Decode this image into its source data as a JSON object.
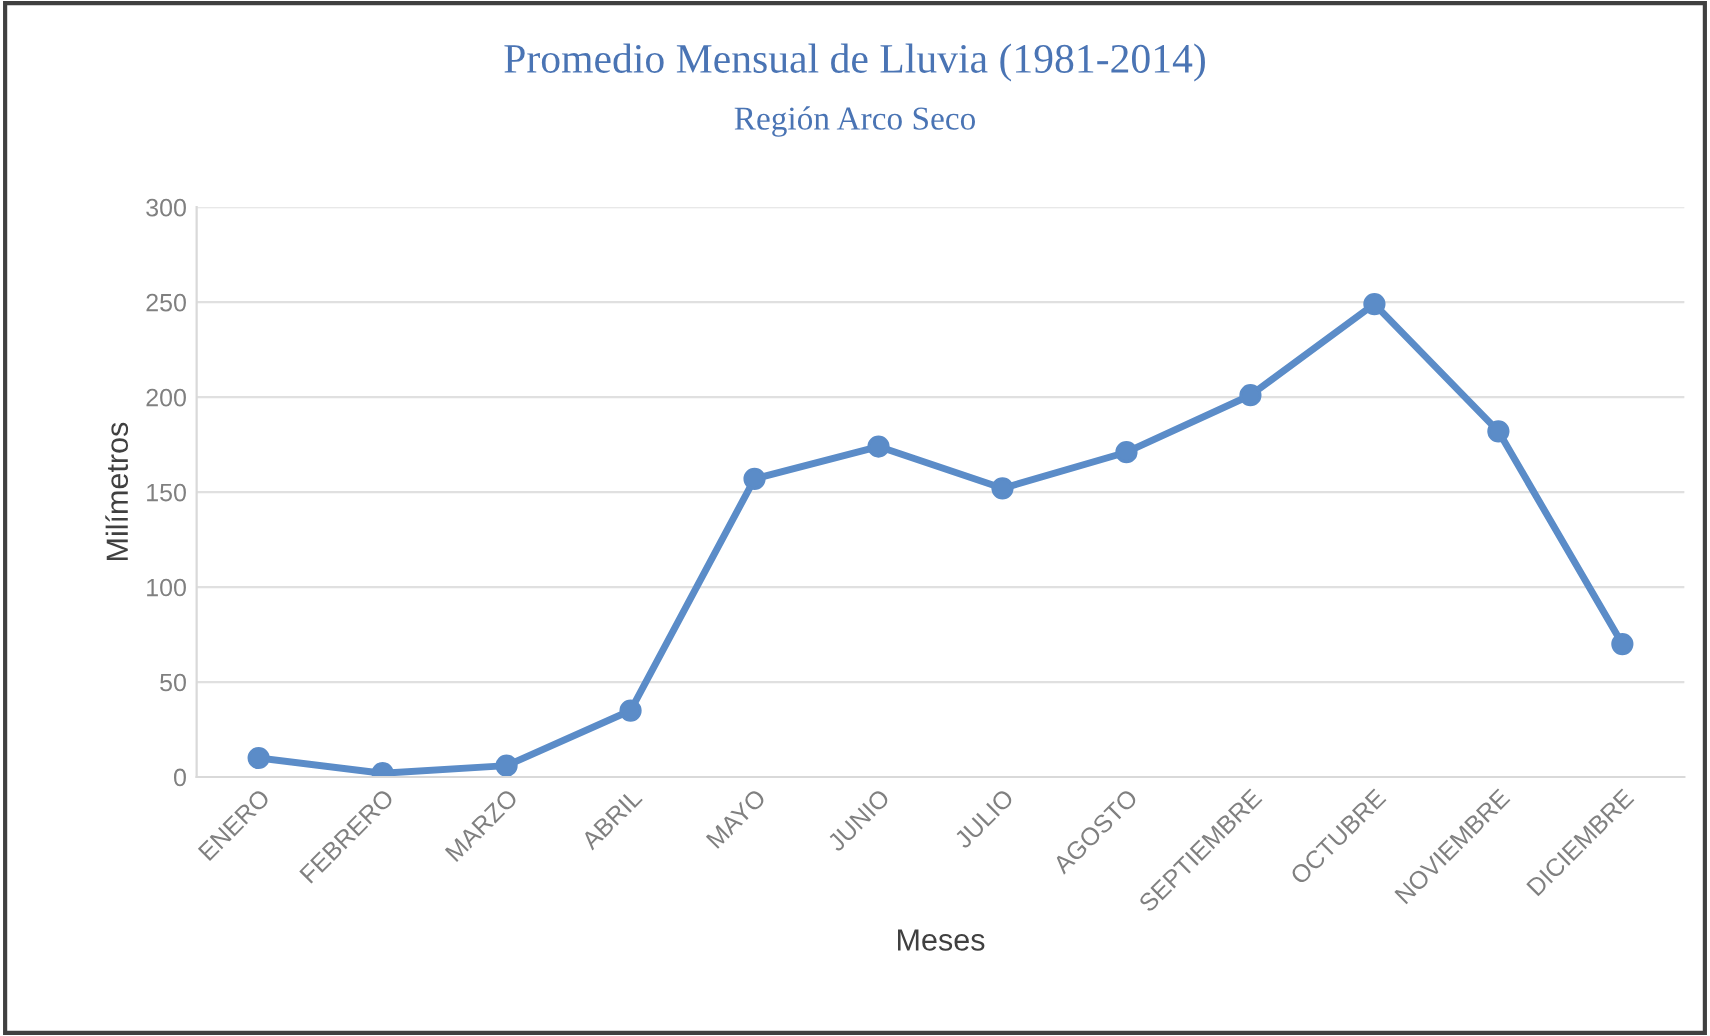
{
  "chart_data": {
    "type": "line",
    "title": "Promedio Mensual de Lluvia (1981-2014)",
    "subtitle": "Región Arco Seco",
    "xlabel": "Meses",
    "ylabel": "Milímetros",
    "categories": [
      "ENERO",
      "FEBRERO",
      "MARZO",
      "ABRIL",
      "MAYO",
      "JUNIO",
      "JULIO",
      "AGOSTO",
      "SEPTIEMBRE",
      "OCTUBRE",
      "NOVIEMBRE",
      "DICIEMBRE"
    ],
    "series": [
      {
        "color": "#5b8cc8",
        "values": [
          10,
          2,
          6,
          35,
          157,
          174,
          152,
          171,
          201,
          249,
          182,
          70
        ]
      }
    ],
    "ylim": [
      0,
      300
    ],
    "yticks": [
      0,
      50,
      100,
      150,
      200,
      250,
      300
    ],
    "grid": "y",
    "marker": "circle",
    "line_style": "solid",
    "legend": false
  }
}
